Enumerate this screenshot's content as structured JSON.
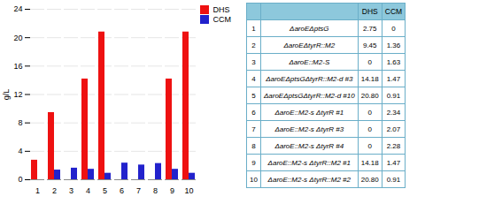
{
  "chart_data": {
    "type": "bar",
    "categories": [
      "1",
      "2",
      "3",
      "4",
      "5",
      "6",
      "7",
      "8",
      "9",
      "10"
    ],
    "series": [
      {
        "name": "DHS",
        "color": "#EE1111",
        "values": [
          2.75,
          9.45,
          0,
          14.18,
          20.8,
          0,
          0,
          0,
          14.18,
          20.8
        ]
      },
      {
        "name": "CCM",
        "color": "#2222CC",
        "values": [
          0,
          1.36,
          1.63,
          1.47,
          0.91,
          2.34,
          2.07,
          2.28,
          1.47,
          0.91
        ]
      }
    ],
    "ylabel": "g/L",
    "ylim": [
      0,
      24
    ],
    "yticks": [
      0,
      4,
      8,
      12,
      16,
      20,
      24
    ],
    "grid": true,
    "legend": "upper right",
    "table": {
      "columns": [
        "DHS",
        "CCM"
      ],
      "rows": [
        [
          "1",
          "ΔaroEΔptsG",
          "2.75",
          "0"
        ],
        [
          "2",
          "ΔaroEΔtyrR::M2",
          "9.45",
          "1.36"
        ],
        [
          "3",
          "ΔaroE::M2-S",
          "0",
          "1.63"
        ],
        [
          "4",
          "ΔaroEΔptsGΔtyrR::M2-d #3",
          "14.18",
          "1.47"
        ],
        [
          "5",
          "ΔaroEΔptsGΔtyrR::M2-d #10",
          "20.80",
          "0.91"
        ],
        [
          "6",
          "ΔaroE::M2-s ΔtyrR #1",
          "0",
          "2.34"
        ],
        [
          "7",
          "ΔaroE::M2-s ΔtyrR #3",
          "0",
          "2.07"
        ],
        [
          "8",
          "ΔaroE::M2-s ΔtyrR #4",
          "0",
          "2.28"
        ],
        [
          "9",
          "ΔaroE::M2-s ΔtyrR::M2 #1",
          "14.18",
          "1.47"
        ],
        [
          "10",
          "ΔaroE::M2-s ΔtyrR::M2 #2",
          "20.80",
          "0.91"
        ]
      ]
    }
  }
}
